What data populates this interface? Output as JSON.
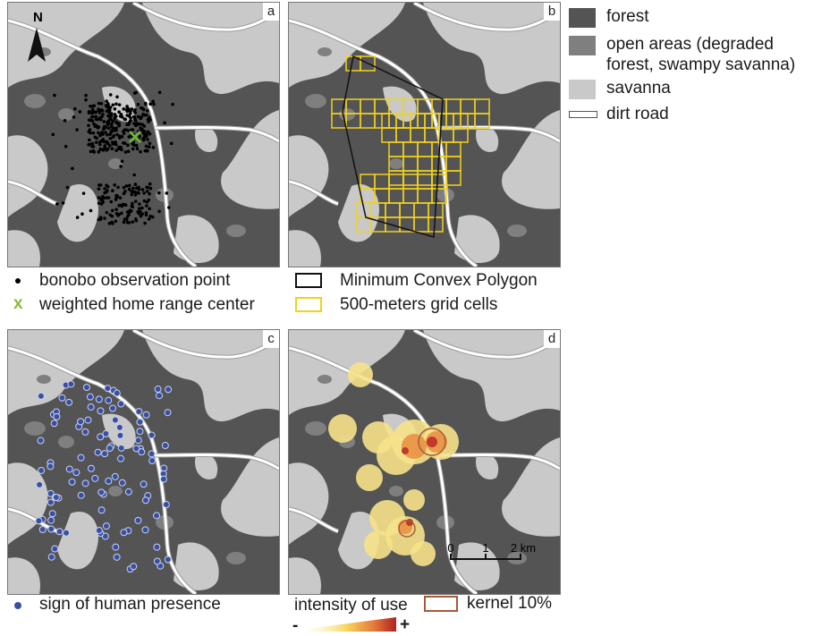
{
  "panels": [
    {
      "label": "a"
    },
    {
      "label": "b"
    },
    {
      "label": "c"
    },
    {
      "label": "d"
    }
  ],
  "north": "N",
  "landcover_legend": {
    "forest": "forest",
    "open_line1": "open areas (degraded",
    "open_line2": "forest, swampy savanna)",
    "savanna": "savanna",
    "road": "dirt road"
  },
  "legend_a": {
    "observation": "bonobo observation point",
    "center_mark": "x",
    "center": "weighted home range center"
  },
  "legend_b": {
    "mcp": "Minimum Convex Polygon",
    "grid": "500-meters grid cells"
  },
  "legend_c": {
    "human": "sign of human presence"
  },
  "legend_d": {
    "intensity": "intensity of use",
    "kernel": "kernel 10%",
    "minus": "-",
    "plus": "+"
  },
  "scale_bar": {
    "ticks": [
      "0",
      "1",
      "2 km"
    ]
  },
  "colors": {
    "forest": "#545454",
    "open": "#7f7f7f",
    "savanna": "#c9c9c9",
    "road": "#ffffff",
    "grid": "#f1d21c",
    "center": "#6fb53c",
    "human": "#3b4fa0",
    "kernel": "#a65a3a"
  }
}
